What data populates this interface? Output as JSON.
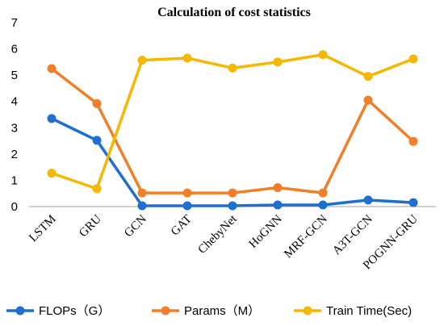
{
  "chart_data": {
    "type": "line",
    "title": "Calculation of cost statistics",
    "xlabel": "",
    "ylabel": "",
    "categories": [
      "LSTM",
      "GRU",
      "GCN",
      "GAT",
      "ChebyNet",
      "HoGNN",
      "MRF-GCN",
      "A3T-GCN",
      "POGNN-GRU"
    ],
    "ylim": [
      0,
      7
    ],
    "yticks": [
      "0",
      "1",
      "2",
      "3",
      "4",
      "5",
      "6",
      "7"
    ],
    "grid": false,
    "legend_position": "bottom",
    "series": [
      {
        "name": "FLOPs（G）",
        "color": "#1f6fd1",
        "values": [
          3.35,
          2.52,
          0.03,
          0.03,
          0.03,
          0.06,
          0.06,
          0.25,
          0.15
        ]
      },
      {
        "name": "Params（M）",
        "color": "#f07f2a",
        "values": [
          5.25,
          3.92,
          0.52,
          0.52,
          0.52,
          0.72,
          0.52,
          4.05,
          2.48
        ]
      },
      {
        "name": "Train Time(Sec)",
        "color": "#f5b800",
        "values": [
          1.27,
          0.68,
          5.57,
          5.65,
          5.27,
          5.5,
          5.78,
          4.95,
          5.62
        ]
      }
    ]
  }
}
